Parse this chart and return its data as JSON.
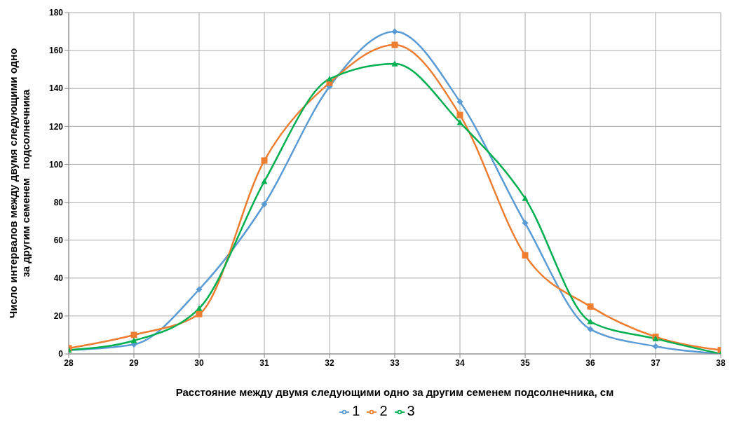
{
  "chart_data": {
    "type": "line",
    "xlabel": "Расстояние между двумя следующими одно за другим семенем  подсолнечника, см",
    "ylabel": "Число интервалов между двумя следующими одно\nза другим семенем   подсолнечника",
    "x": [
      28,
      29,
      30,
      31,
      32,
      33,
      34,
      35,
      36,
      37,
      38
    ],
    "xlim": [
      28,
      38
    ],
    "xticks": [
      28,
      29,
      30,
      31,
      32,
      33,
      34,
      35,
      36,
      37,
      38
    ],
    "ylim": [
      0,
      180
    ],
    "yticks": [
      0,
      20,
      40,
      60,
      80,
      100,
      120,
      140,
      160,
      180
    ],
    "grid": true,
    "legend": "bottom",
    "line_style": "solid",
    "series": [
      {
        "name": "1",
        "color": "#5b9bd5",
        "marker": "diamond",
        "values": [
          2,
          5,
          34,
          79,
          141,
          170,
          133,
          69,
          13,
          4,
          0
        ]
      },
      {
        "name": "2",
        "color": "#ed7d31",
        "marker": "square",
        "values": [
          3,
          10,
          21,
          102,
          143,
          163,
          126,
          52,
          25,
          9,
          2
        ]
      },
      {
        "name": "3",
        "color": "#00b050",
        "marker": "triangle",
        "values": [
          2,
          7,
          24,
          91,
          145,
          153,
          122,
          82,
          17,
          8,
          0
        ]
      }
    ]
  }
}
